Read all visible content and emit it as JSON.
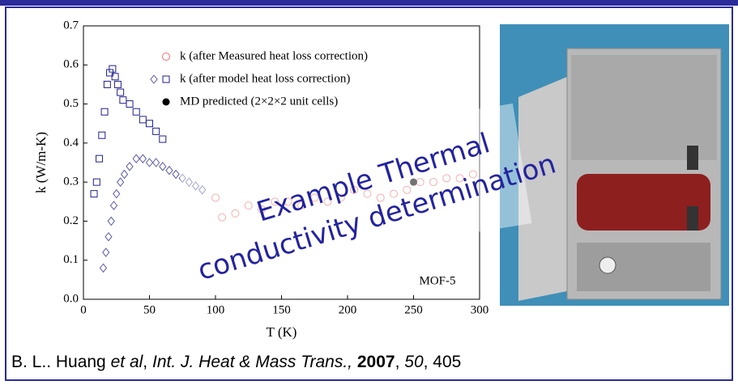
{
  "chart_data": {
    "type": "scatter",
    "xlabel": "T (K)",
    "ylabel": "k (W/m-K)",
    "annotation": "MOF-5",
    "xlim": [
      0,
      300
    ],
    "xticks": [
      0,
      50,
      100,
      150,
      200,
      250,
      300
    ],
    "ylim": [
      0,
      0.7
    ],
    "yticks": [
      {
        "value": 0,
        "label": "0.0"
      },
      0.1,
      0.2,
      0.3,
      0.4,
      0.5,
      0.6,
      0.7
    ],
    "series": [
      {
        "name": "k (after Measured heat loss correction)",
        "color": "#f26b6b",
        "marker": "circle",
        "x": [
          100,
          105,
          115,
          125,
          135,
          145,
          155,
          165,
          175,
          185,
          195,
          205,
          215,
          225,
          235,
          245,
          255,
          265,
          275,
          285,
          295
        ],
        "values": [
          0.26,
          0.21,
          0.22,
          0.24,
          0.23,
          0.25,
          0.25,
          0.24,
          0.26,
          0.25,
          0.26,
          0.28,
          0.27,
          0.26,
          0.27,
          0.28,
          0.3,
          0.3,
          0.31,
          0.31,
          0.32
        ]
      },
      {
        "name": "k (after model heat loss correction)",
        "color": "#1f1f8f",
        "marker": "square",
        "x": [
          8,
          10,
          12,
          14,
          16,
          18,
          20,
          22,
          24,
          26,
          28,
          30,
          35,
          40,
          45,
          50,
          55,
          60
        ],
        "values": [
          0.27,
          0.3,
          0.36,
          0.42,
          0.48,
          0.55,
          0.58,
          0.59,
          0.57,
          0.55,
          0.53,
          0.51,
          0.5,
          0.48,
          0.46,
          0.45,
          0.43,
          0.41
        ]
      },
      {
        "color": "#5a5aaa",
        "marker": "diamond",
        "x": [
          15,
          17,
          19,
          21,
          23,
          25,
          28,
          31,
          35,
          40,
          45,
          50,
          55,
          60,
          65,
          70,
          75,
          80,
          85,
          90
        ],
        "values": [
          0.08,
          0.12,
          0.16,
          0.2,
          0.24,
          0.27,
          0.3,
          0.32,
          0.34,
          0.36,
          0.36,
          0.35,
          0.35,
          0.34,
          0.33,
          0.32,
          0.31,
          0.3,
          0.29,
          0.28
        ]
      },
      {
        "name": "MD predicted (2×2×2 unit cells)",
        "color": "#000000",
        "marker": "dot",
        "x": [
          250
        ],
        "values": [
          0.3
        ]
      }
    ]
  },
  "overlay": {
    "lines": [
      "Example Thermal",
      "conductivity determination"
    ]
  },
  "citation": [
    "B. L.. Huang",
    "et al",
    ",",
    "Int. J. Heat & Mass Trans.,",
    "2007",
    ",",
    "50",
    ", 405"
  ]
}
